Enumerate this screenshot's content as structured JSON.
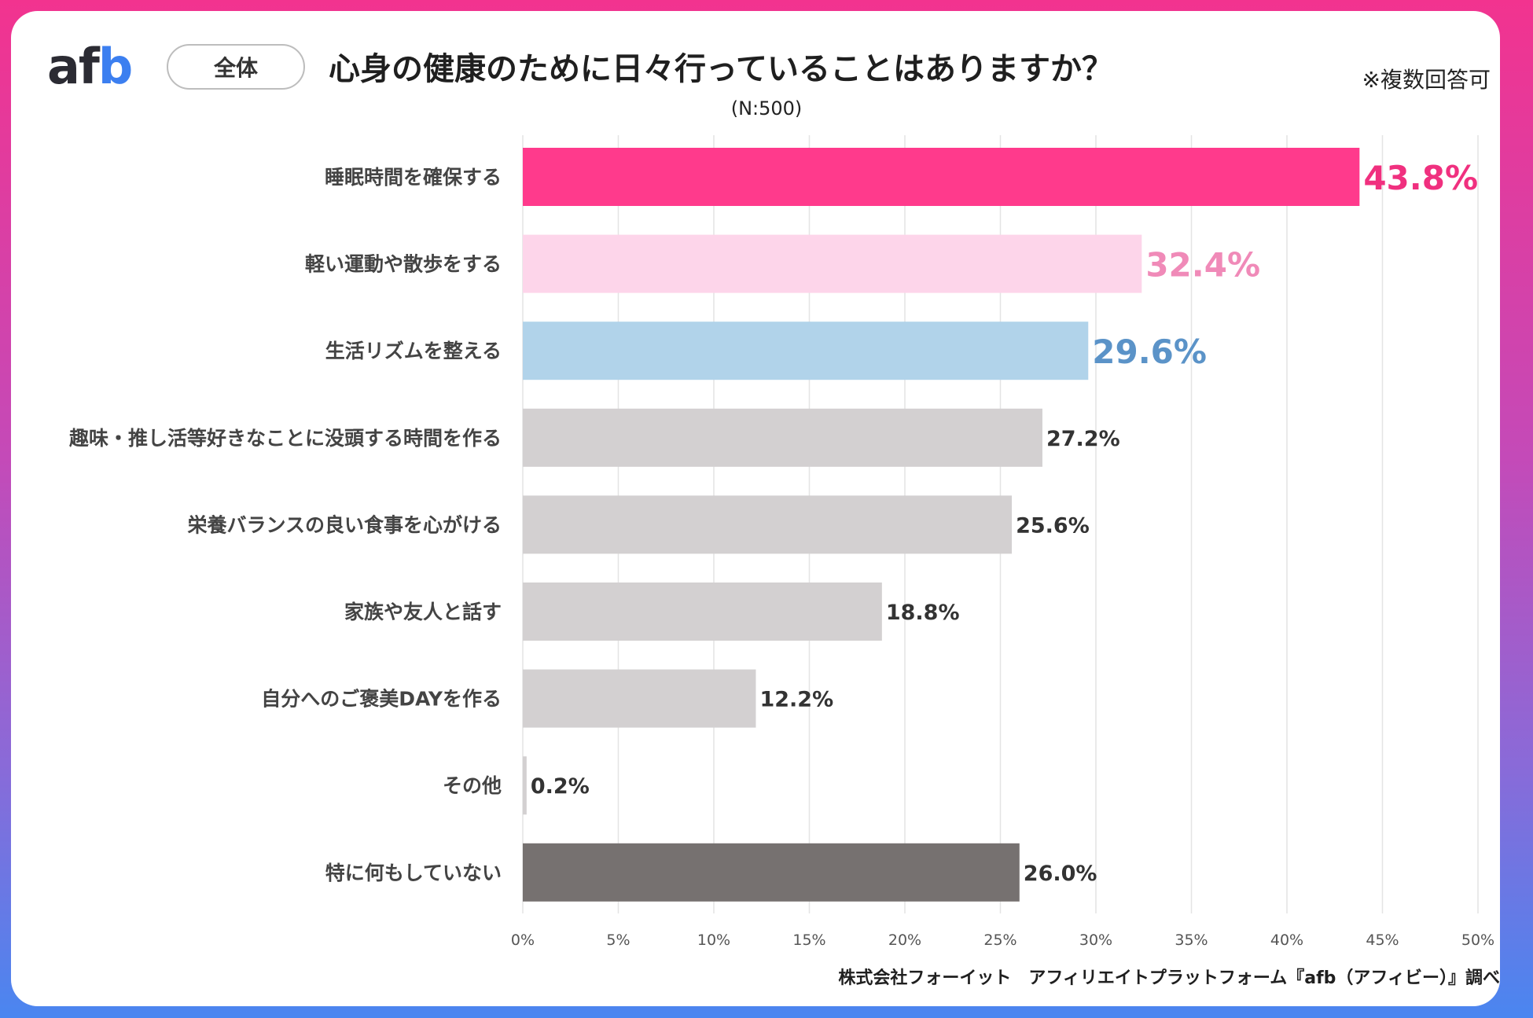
{
  "header": {
    "logo_text_a": "af",
    "logo_text_b": "b",
    "scope_label": "全体",
    "title": "心身の健康のために日々行っていることはありますか？",
    "sample_size": "(N:500)",
    "note": "※複数回答可"
  },
  "footer": {
    "source": "株式会社フォーイット　アフィリエイトプラットフォーム『afb（アフィビー）』調べ"
  },
  "chart_data": {
    "type": "bar",
    "orientation": "horizontal",
    "title": "心身の健康のために日々行っていることはありますか？",
    "xlabel": "",
    "ylabel": "",
    "xlim": [
      0,
      50
    ],
    "x_ticks": [
      0,
      5,
      10,
      15,
      20,
      25,
      30,
      35,
      40,
      45,
      50
    ],
    "tick_suffix": "%",
    "grid": true,
    "categories": [
      "睡眠時間を確保する",
      "軽い運動や散歩をする",
      "生活リズムを整える",
      "趣味・推し活等好きなことに没頭する時間を作る",
      "栄養バランスの良い食事を心がける",
      "家族や友人と話す",
      "自分へのご褒美DAYを作る",
      "その他",
      "特に何もしていない"
    ],
    "values": [
      43.8,
      32.4,
      29.6,
      27.2,
      25.6,
      18.8,
      12.2,
      0.2,
      26.0
    ],
    "value_labels": [
      "43.8%",
      "32.4%",
      "29.6%",
      "27.2%",
      "25.6%",
      "18.8%",
      "12.2%",
      "0.2%",
      "26.0%"
    ],
    "bar_colors": [
      "#ff3a8c",
      "#fdd5ea",
      "#b1d3ea",
      "#d3d0d1",
      "#d3d0d1",
      "#d3d0d1",
      "#d3d0d1",
      "#d3d0d1",
      "#767170"
    ],
    "label_colors": [
      "#f0307f",
      "#f08ab8",
      "#5b93c8",
      "#333333",
      "#333333",
      "#333333",
      "#333333",
      "#333333",
      "#333333"
    ],
    "label_emphasis": [
      true,
      true,
      true,
      false,
      false,
      false,
      false,
      false,
      false
    ]
  }
}
